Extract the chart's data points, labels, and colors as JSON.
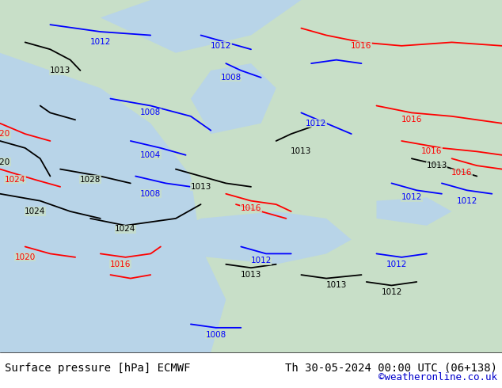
{
  "title_left": "Surface pressure [hPa] ECMWF",
  "title_right": "Th 30-05-2024 00:00 UTC (06+138)",
  "copyright": "©weatheronline.co.uk",
  "land_color": "#c8dfc8",
  "ocean_color": "#b8d4e8",
  "fig_width": 6.34,
  "fig_height": 4.9,
  "dpi": 100,
  "footer_text_color": "#000000",
  "copyright_color": "#0000cc",
  "title_fontsize": 10,
  "copyright_fontsize": 9
}
